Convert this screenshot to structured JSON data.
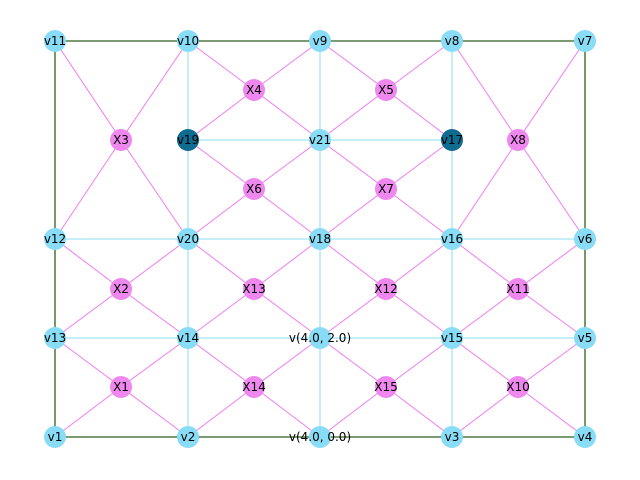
{
  "graph": {
    "colors": {
      "boundary_edge": "#2f5f1f",
      "grid_edge": "#88dfee",
      "diagonal_edge": "#f07cf0",
      "vertex": "#88dcf6",
      "cross": "#ee88ee",
      "highlight": "#0f6b8f"
    },
    "nodes": [
      {
        "id": "v11",
        "label": "v11",
        "kind": "vertex"
      },
      {
        "id": "v10",
        "label": "v10",
        "kind": "vertex"
      },
      {
        "id": "v9",
        "label": "v9",
        "kind": "vertex"
      },
      {
        "id": "v8",
        "label": "v8",
        "kind": "vertex"
      },
      {
        "id": "v7",
        "label": "v7",
        "kind": "vertex"
      },
      {
        "id": "X4",
        "label": "X4",
        "kind": "cross"
      },
      {
        "id": "X5",
        "label": "X5",
        "kind": "cross"
      },
      {
        "id": "X3",
        "label": "X3",
        "kind": "cross"
      },
      {
        "id": "v19",
        "label": "v19",
        "kind": "highlight"
      },
      {
        "id": "v21",
        "label": "v21",
        "kind": "vertex"
      },
      {
        "id": "v17",
        "label": "v17",
        "kind": "highlight"
      },
      {
        "id": "X8",
        "label": "X8",
        "kind": "cross"
      },
      {
        "id": "X6",
        "label": "X6",
        "kind": "cross"
      },
      {
        "id": "X7",
        "label": "X7",
        "kind": "cross"
      },
      {
        "id": "v12",
        "label": "v12",
        "kind": "vertex"
      },
      {
        "id": "v20",
        "label": "v20",
        "kind": "vertex"
      },
      {
        "id": "v18",
        "label": "v18",
        "kind": "vertex"
      },
      {
        "id": "v16",
        "label": "v16",
        "kind": "vertex"
      },
      {
        "id": "v6",
        "label": "v6",
        "kind": "vertex"
      },
      {
        "id": "X2",
        "label": "X2",
        "kind": "cross"
      },
      {
        "id": "X13",
        "label": "X13",
        "kind": "cross"
      },
      {
        "id": "X12",
        "label": "X12",
        "kind": "cross"
      },
      {
        "id": "X11",
        "label": "X11",
        "kind": "cross"
      },
      {
        "id": "v13",
        "label": "v13",
        "kind": "vertex"
      },
      {
        "id": "v14",
        "label": "v14",
        "kind": "vertex"
      },
      {
        "id": "v42",
        "label": "v(4.0, 2.0)",
        "kind": "vertex"
      },
      {
        "id": "v15",
        "label": "v15",
        "kind": "vertex"
      },
      {
        "id": "v5",
        "label": "v5",
        "kind": "vertex"
      },
      {
        "id": "X1",
        "label": "X1",
        "kind": "cross"
      },
      {
        "id": "X14",
        "label": "X14",
        "kind": "cross"
      },
      {
        "id": "X15",
        "label": "X15",
        "kind": "cross"
      },
      {
        "id": "X10",
        "label": "X10",
        "kind": "cross"
      },
      {
        "id": "v1",
        "label": "v1",
        "kind": "vertex"
      },
      {
        "id": "v2",
        "label": "v2",
        "kind": "vertex"
      },
      {
        "id": "v40",
        "label": "v(4.0, 0.0)",
        "kind": "vertex"
      },
      {
        "id": "v3",
        "label": "v3",
        "kind": "vertex"
      },
      {
        "id": "v4",
        "label": "v4",
        "kind": "vertex"
      }
    ],
    "edges": [
      [
        "v11",
        "v10",
        "boundary"
      ],
      [
        "v10",
        "v9",
        "boundary"
      ],
      [
        "v9",
        "v8",
        "boundary"
      ],
      [
        "v8",
        "v7",
        "boundary"
      ],
      [
        "v1",
        "v2",
        "boundary"
      ],
      [
        "v2",
        "v40",
        "boundary"
      ],
      [
        "v40",
        "v3",
        "boundary"
      ],
      [
        "v3",
        "v4",
        "boundary"
      ],
      [
        "v11",
        "v12",
        "boundary"
      ],
      [
        "v12",
        "v13",
        "boundary"
      ],
      [
        "v13",
        "v1",
        "boundary"
      ],
      [
        "v7",
        "v6",
        "boundary"
      ],
      [
        "v6",
        "v5",
        "boundary"
      ],
      [
        "v5",
        "v4",
        "boundary"
      ],
      [
        "v19",
        "v21",
        "grid"
      ],
      [
        "v21",
        "v17",
        "grid"
      ],
      [
        "v12",
        "v20",
        "grid"
      ],
      [
        "v20",
        "v18",
        "grid"
      ],
      [
        "v18",
        "v16",
        "grid"
      ],
      [
        "v16",
        "v6",
        "grid"
      ],
      [
        "v13",
        "v14",
        "grid"
      ],
      [
        "v14",
        "v42",
        "grid"
      ],
      [
        "v42",
        "v15",
        "grid"
      ],
      [
        "v15",
        "v5",
        "grid"
      ],
      [
        "v10",
        "v19",
        "grid"
      ],
      [
        "v19",
        "v20",
        "grid"
      ],
      [
        "v20",
        "v14",
        "grid"
      ],
      [
        "v14",
        "v2",
        "grid"
      ],
      [
        "v9",
        "v21",
        "grid"
      ],
      [
        "v21",
        "v18",
        "grid"
      ],
      [
        "v18",
        "v42",
        "grid"
      ],
      [
        "v42",
        "v40",
        "grid"
      ],
      [
        "v8",
        "v17",
        "grid"
      ],
      [
        "v17",
        "v16",
        "grid"
      ],
      [
        "v16",
        "v15",
        "grid"
      ],
      [
        "v15",
        "v3",
        "grid"
      ],
      [
        "v11",
        "X3",
        "diag"
      ],
      [
        "X3",
        "v20",
        "diag"
      ],
      [
        "v10",
        "X3",
        "diag"
      ],
      [
        "X3",
        "v12",
        "diag"
      ],
      [
        "v10",
        "X4",
        "diag"
      ],
      [
        "X4",
        "v21",
        "diag"
      ],
      [
        "v9",
        "X4",
        "diag"
      ],
      [
        "X4",
        "v19",
        "diag"
      ],
      [
        "v9",
        "X5",
        "diag"
      ],
      [
        "X5",
        "v17",
        "diag"
      ],
      [
        "v8",
        "X5",
        "diag"
      ],
      [
        "X5",
        "v21",
        "diag"
      ],
      [
        "v8",
        "X8",
        "diag"
      ],
      [
        "X8",
        "v6",
        "diag"
      ],
      [
        "v7",
        "X8",
        "diag"
      ],
      [
        "X8",
        "v16",
        "diag"
      ],
      [
        "v19",
        "X6",
        "diag"
      ],
      [
        "X6",
        "v18",
        "diag"
      ],
      [
        "v21",
        "X6",
        "diag"
      ],
      [
        "X6",
        "v20",
        "diag"
      ],
      [
        "v21",
        "X7",
        "diag"
      ],
      [
        "X7",
        "v16",
        "diag"
      ],
      [
        "v17",
        "X7",
        "diag"
      ],
      [
        "X7",
        "v18",
        "diag"
      ],
      [
        "v12",
        "X2",
        "diag"
      ],
      [
        "X2",
        "v14",
        "diag"
      ],
      [
        "v20",
        "X2",
        "diag"
      ],
      [
        "X2",
        "v13",
        "diag"
      ],
      [
        "v20",
        "X13",
        "diag"
      ],
      [
        "X13",
        "v42",
        "diag"
      ],
      [
        "v18",
        "X13",
        "diag"
      ],
      [
        "X13",
        "v14",
        "diag"
      ],
      [
        "v18",
        "X12",
        "diag"
      ],
      [
        "X12",
        "v15",
        "diag"
      ],
      [
        "v16",
        "X12",
        "diag"
      ],
      [
        "X12",
        "v42",
        "diag"
      ],
      [
        "v16",
        "X11",
        "diag"
      ],
      [
        "X11",
        "v5",
        "diag"
      ],
      [
        "v6",
        "X11",
        "diag"
      ],
      [
        "X11",
        "v15",
        "diag"
      ],
      [
        "v13",
        "X1",
        "diag"
      ],
      [
        "X1",
        "v2",
        "diag"
      ],
      [
        "v14",
        "X1",
        "diag"
      ],
      [
        "X1",
        "v1",
        "diag"
      ],
      [
        "v14",
        "X14",
        "diag"
      ],
      [
        "X14",
        "v40",
        "diag"
      ],
      [
        "v42",
        "X14",
        "diag"
      ],
      [
        "X14",
        "v2",
        "diag"
      ],
      [
        "v42",
        "X15",
        "diag"
      ],
      [
        "X15",
        "v3",
        "diag"
      ],
      [
        "v15",
        "X15",
        "diag"
      ],
      [
        "X15",
        "v40",
        "diag"
      ],
      [
        "v15",
        "X10",
        "diag"
      ],
      [
        "X10",
        "v4",
        "diag"
      ],
      [
        "v5",
        "X10",
        "diag"
      ],
      [
        "X10",
        "v3",
        "diag"
      ]
    ]
  }
}
